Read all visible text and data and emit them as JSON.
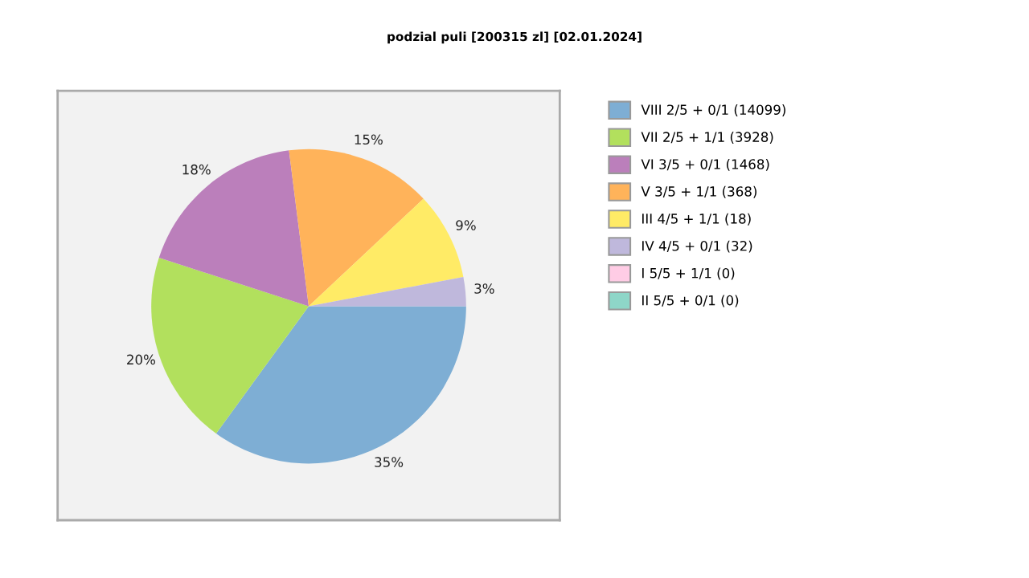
{
  "chart_data": {
    "type": "pie",
    "title": "podzial puli [200315 zl] [02.01.2024]",
    "categories": [
      "VIII 2/5 + 0/1 (14099)",
      "VII 2/5 + 1/1 (3928)",
      "VI 3/5 + 0/1 (1468)",
      "V 3/5 + 1/1 (368)",
      "III 4/5 + 1/1 (18)",
      "IV 4/5 + 0/1 (32)",
      "I 5/5 + 1/1 (0)",
      "II 5/5 + 0/1 (0)"
    ],
    "values": [
      35,
      20,
      18,
      15,
      9,
      3,
      0,
      0
    ],
    "value_labels": [
      "35%",
      "20%",
      "18%",
      "15%",
      "9%",
      "3%",
      null,
      null
    ],
    "colors": [
      "#7eaed4",
      "#b2e05d",
      "#bb7fbb",
      "#ffb35a",
      "#ffeb66",
      "#bfb8dc",
      "#ffcce5",
      "#8ed6c8"
    ],
    "legend": "right"
  }
}
